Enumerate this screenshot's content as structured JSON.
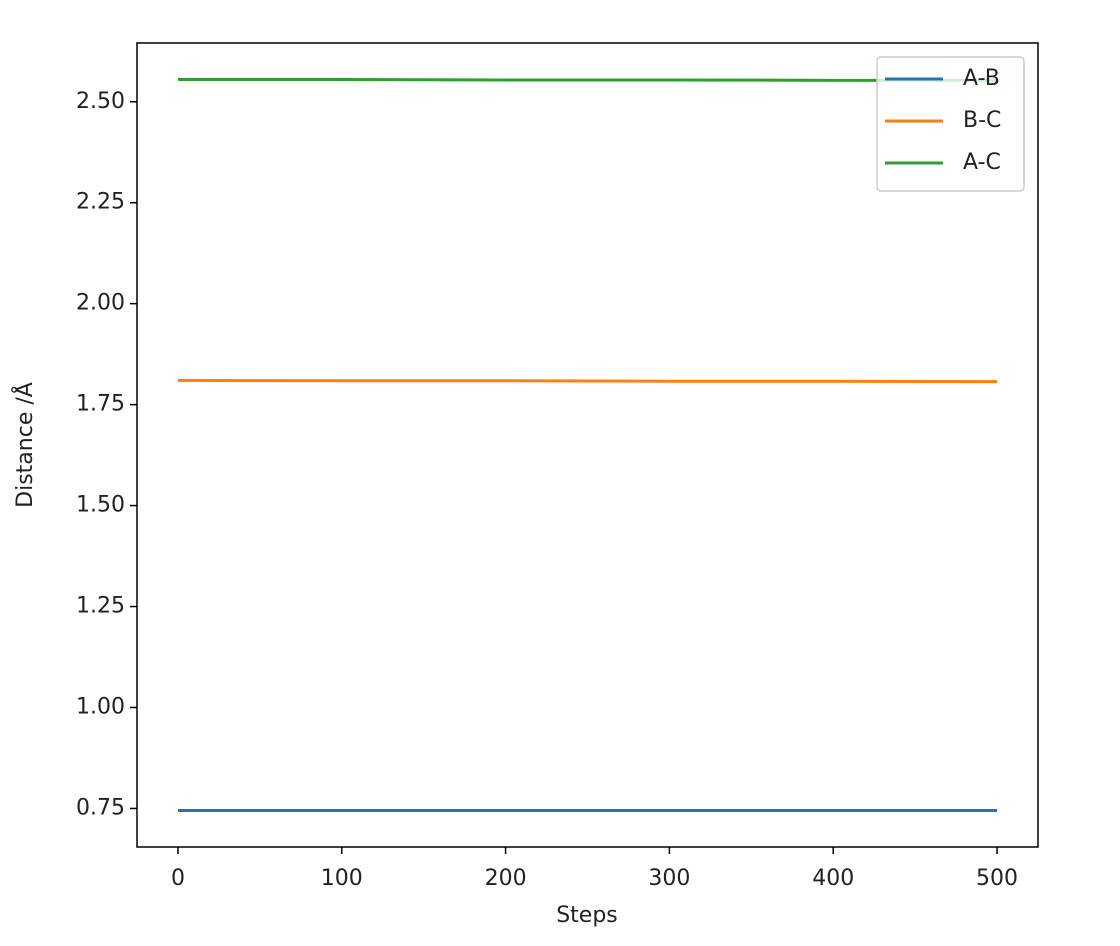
{
  "chart_data": {
    "type": "line",
    "x_label": "Steps",
    "y_label": "Distance /Å",
    "x": [
      0,
      100,
      200,
      300,
      400,
      500
    ],
    "series": [
      {
        "name": "A-B",
        "color": "#1f77b4",
        "values": [
          0.745,
          0.745,
          0.745,
          0.745,
          0.745,
          0.745
        ]
      },
      {
        "name": "B-C",
        "color": "#ff7f0e",
        "values": [
          1.81,
          1.809,
          1.809,
          1.808,
          1.808,
          1.807
        ]
      },
      {
        "name": "A-C",
        "color": "#2ca02c",
        "values": [
          2.555,
          2.555,
          2.554,
          2.554,
          2.553,
          2.553
        ]
      }
    ],
    "xlim": [
      -25,
      525
    ],
    "xticks": [
      0,
      100,
      200,
      300,
      400,
      500
    ],
    "ylim": [
      0.6545,
      2.6455
    ],
    "yticks": [
      0.75,
      {
        "value": 1.0,
        "label": "1.00"
      },
      1.25,
      {
        "value": 1.5,
        "label": "1.50"
      },
      1.75,
      {
        "value": 2.0,
        "label": "2.00"
      },
      2.25,
      {
        "value": 2.5,
        "label": "2.50"
      }
    ],
    "grid": false,
    "legend": "upper right"
  }
}
